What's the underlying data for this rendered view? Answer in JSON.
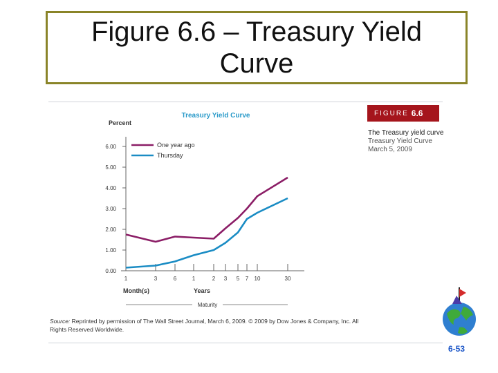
{
  "slide": {
    "title": "Figure 6.6 – Treasury Yield Curve",
    "page_number": "6-53"
  },
  "figure": {
    "tag_label": "FIGURE",
    "tag_number": "6.6",
    "caption_title": "The Treasury yield curve",
    "caption_subtitle": "Treasury Yield Curve",
    "caption_date": "March 5, 2009",
    "source_label": "Source:",
    "source_text": "Reprinted by permission of The Wall Street Journal, March 6, 2009. © 2009 by Dow Jones & Company, Inc. All Rights Reserved Worldwide."
  },
  "chart_data": {
    "type": "line",
    "title": "Treasury Yield Curve",
    "ylabel": "Percent",
    "xlabel_months": "Month(s)",
    "xlabel_years": "Years",
    "xlabel": "Maturity",
    "ylim": [
      0,
      6
    ],
    "yticks": [
      "6.00",
      "5.00",
      "4.00",
      "3.00",
      "2.00",
      "1.00",
      "0.00"
    ],
    "ytick_values": [
      6,
      5,
      4,
      3,
      2,
      1,
      0
    ],
    "x": [
      "1",
      "3",
      "6",
      "1",
      "2",
      "3",
      "5",
      "7",
      "10",
      "30"
    ],
    "x_units": [
      "month",
      "month",
      "month",
      "year",
      "year",
      "year",
      "year",
      "year",
      "year",
      "year"
    ],
    "series": [
      {
        "name": "One year ago",
        "color": "#8b1d66",
        "values": [
          1.75,
          1.4,
          1.65,
          1.6,
          1.55,
          2.05,
          2.55,
          3.0,
          3.6,
          4.5
        ]
      },
      {
        "name": "Thursday",
        "color": "#1a8cc4",
        "values": [
          0.15,
          0.25,
          0.45,
          0.75,
          1.0,
          1.35,
          1.85,
          2.5,
          2.8,
          3.5
        ]
      }
    ],
    "legend": "top-left",
    "grid": false
  }
}
